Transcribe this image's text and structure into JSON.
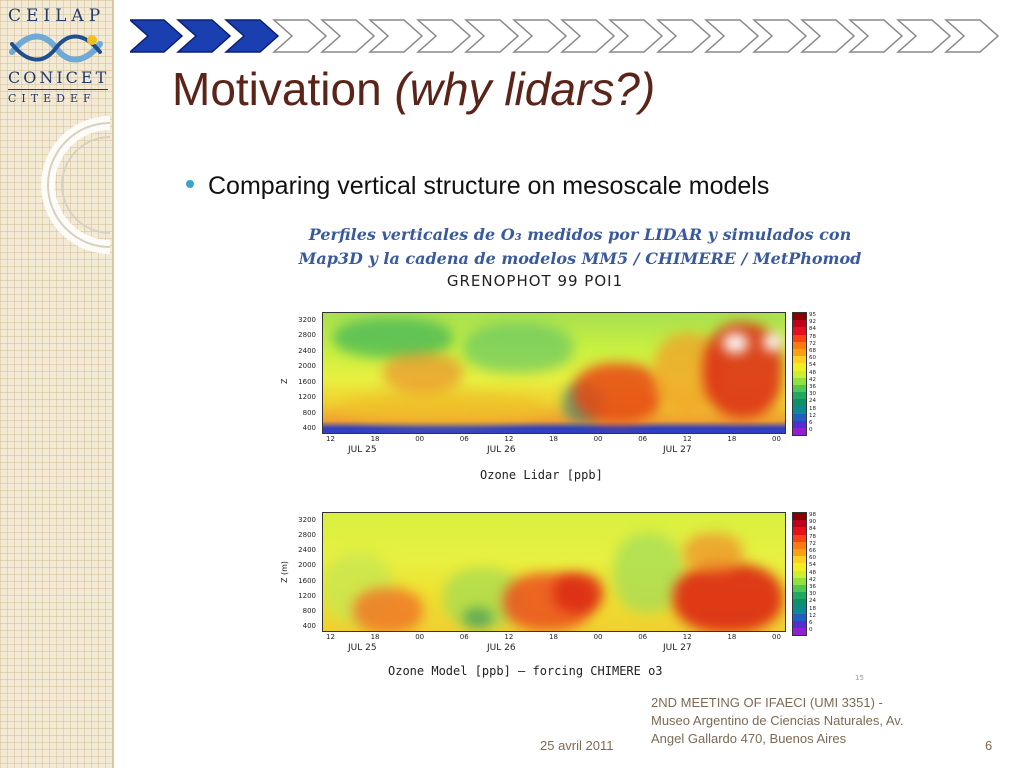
{
  "logo": {
    "line1": "CEILAP",
    "line2": "CONICET",
    "line3": "CITEDEF"
  },
  "title": {
    "main": "Motivation",
    "italic": "(why lidars?)"
  },
  "bullet": "Comparing vertical structure on mesoscale models",
  "figure": {
    "title_line1": "Perfiles verticales de O₃ medidos por LIDAR y simulados con",
    "title_line2": "Map3D y la cadena de modelos MM5 / CHIMERE / MetPhomod",
    "subtitle": "GRENOPHOT 99 POI1",
    "plot1": {
      "ylabel": "Z",
      "caption": "Ozone Lidar [ppb]"
    },
    "plot2": {
      "ylabel": "Z (m)",
      "caption": "Ozone Model [ppb] – forcing CHIMERE o3"
    },
    "yticks": [
      "3200",
      "2800",
      "2400",
      "2000",
      "1600",
      "1200",
      "800",
      "400"
    ],
    "xticks": [
      "12",
      "18",
      "00",
      "06",
      "12",
      "18",
      "00",
      "06",
      "12",
      "18",
      "00"
    ],
    "dates": [
      "JUL 25",
      "JUL 26",
      "JUL 27"
    ],
    "colorbar1": [
      "95",
      "92",
      "84",
      "78",
      "72",
      "68",
      "60",
      "54",
      "48",
      "42",
      "36",
      "30",
      "24",
      "18",
      "12",
      "6",
      "0"
    ],
    "colorbar2": [
      "98",
      "90",
      "84",
      "78",
      "72",
      "66",
      "60",
      "54",
      "48",
      "42",
      "36",
      "30",
      "24",
      "18",
      "12",
      "6",
      "0"
    ],
    "colorbar_colors": [
      "#8b0000",
      "#c0001a",
      "#e8101a",
      "#ff4010",
      "#ff7a10",
      "#ffa010",
      "#ffd020",
      "#f0f020",
      "#c8f030",
      "#90e040",
      "#50c850",
      "#20a860",
      "#10906a",
      "#108890",
      "#2060c0",
      "#5030d0",
      "#9020d0"
    ]
  },
  "footer": {
    "date": "25 avril 2011",
    "meeting_line1": "2ND MEETING OF IFAECI (UMI 3351) -",
    "meeting_line2": "Museo Argentino de Ciencias Naturales, Av.",
    "meeting_line3": "Angel Gallardo 470, Buenos Aires",
    "page_number": "6"
  },
  "progress": {
    "filled": 3,
    "total": 18,
    "filled_color": "#1a3fb0",
    "empty_color": "#ffffff"
  },
  "colors": {
    "title": "#5a2418",
    "bullet": "#3aa3c9",
    "footer": "#7c6a54",
    "figure_title": "#3a5a9e"
  }
}
